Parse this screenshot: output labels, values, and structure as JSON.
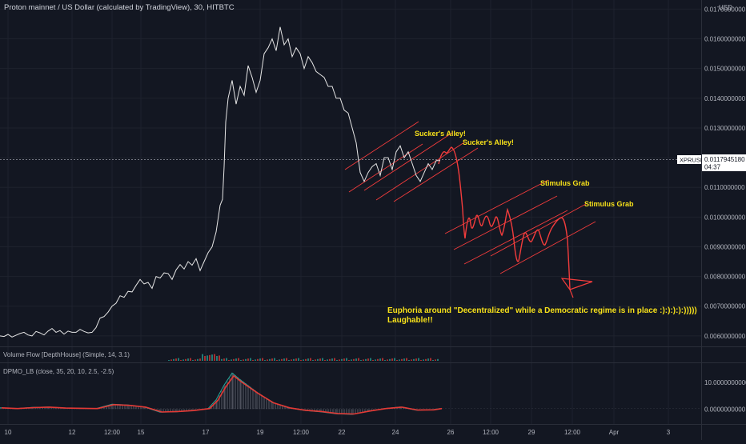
{
  "header": {
    "title": "Proton mainnet / US Dollar (calculated by TradingView), 30, HITBTC",
    "currency": "USD"
  },
  "price_badge": {
    "symbol": "XPRUSD",
    "price": "0.0117945180",
    "countdown": "04:37"
  },
  "annotations": {
    "suckers_alley_1": "Sucker's Alley!",
    "suckers_alley_2": "Sucker's Alley!",
    "stimulus_grab_1": "Stimulus Grab",
    "stimulus_grab_2": "Stimulus Grab",
    "comment_line1": "Euphoria around \"Decentralized\" while a Democratic regime is in place :):):):):)))))",
    "comment_line2": "Laughable!!"
  },
  "panels": {
    "volume_flow": "Volume Flow [DepthHouse] (Simple, 14, 3.1)",
    "dpmo": "DPMO_LB (close, 35, 20, 10, 2.5, -2.5)"
  },
  "colors": {
    "background": "#131722",
    "price_line": "#e6e6e6",
    "projection": "#f23c3c",
    "annotation_text": "#f7e11a",
    "dpmo_line": "#26a69a",
    "badge_bg": "#ffffff"
  },
  "chart_data": [
    {
      "type": "line",
      "title": "Proton mainnet / US Dollar (calculated by TradingView), 30, HITBTC",
      "x_ticks": [
        "10",
        "12",
        "12:00",
        "15",
        "17",
        "19",
        "12:00",
        "22",
        "24",
        "26",
        "12:00",
        "29",
        "12:00",
        "Apr",
        "3"
      ],
      "y_ticks": [
        "0.0060000000",
        "0.0070000000",
        "0.0080000000",
        "0.0090000000",
        "0.0100000000",
        "0.0110000000",
        "0.0120000000",
        "0.0130000000",
        "0.0140000000",
        "0.0150000000",
        "0.0160000000",
        "0.0170000000"
      ],
      "ylim": [
        0.0057,
        0.0172
      ],
      "series": [
        {
          "x": [
            0,
            5,
            10,
            15,
            20,
            25,
            30,
            35,
            40,
            45,
            50,
            55,
            60,
            65,
            70,
            75,
            80,
            85,
            90,
            95,
            100,
            105,
            110,
            115,
            120,
            125,
            130,
            135,
            140,
            145,
            150,
            155,
            160,
            165,
            170,
            175,
            180,
            185,
            190,
            195,
            200,
            205,
            210,
            215,
            220,
            225,
            230,
            235,
            240,
            245,
            250,
            255,
            260,
            265,
            270,
            275,
            278,
            280,
            282,
            285,
            290,
            295,
            300,
            305,
            310,
            315,
            320,
            325,
            330,
            335,
            340,
            345,
            350,
            355,
            360,
            365,
            370,
            375,
            380,
            385,
            390,
            395,
            400,
            405,
            410,
            415,
            420,
            425,
            430,
            435,
            440,
            445,
            450,
            455,
            460,
            465,
            470,
            475,
            480,
            485,
            490,
            495,
            500,
            505,
            510,
            515,
            520,
            525,
            530,
            535,
            540,
            545,
            550
          ],
          "values": [
            0.006,
            0.00598,
            0.00605,
            0.00596,
            0.00602,
            0.00608,
            0.00612,
            0.00603,
            0.006,
            0.00615,
            0.0061,
            0.00603,
            0.00616,
            0.00625,
            0.00612,
            0.00618,
            0.00606,
            0.00616,
            0.00612,
            0.00612,
            0.00622,
            0.00615,
            0.0061,
            0.00612,
            0.00628,
            0.0066,
            0.00665,
            0.0068,
            0.007,
            0.0071,
            0.00735,
            0.0073,
            0.0075,
            0.00748,
            0.0077,
            0.0079,
            0.00775,
            0.0078,
            0.0076,
            0.008,
            0.00795,
            0.00812,
            0.0081,
            0.0079,
            0.00822,
            0.0084,
            0.00825,
            0.0085,
            0.00838,
            0.0086,
            0.0082,
            0.0085,
            0.0088,
            0.009,
            0.0095,
            0.0104,
            0.0106,
            0.0117,
            0.0132,
            0.014,
            0.0146,
            0.0138,
            0.0144,
            0.0141,
            0.0151,
            0.0147,
            0.0142,
            0.0146,
            0.0155,
            0.0157,
            0.016,
            0.0156,
            0.0164,
            0.0158,
            0.016,
            0.0154,
            0.0157,
            0.0155,
            0.015,
            0.0154,
            0.0152,
            0.0149,
            0.0148,
            0.0147,
            0.0144,
            0.0144,
            0.014,
            0.014,
            0.0136,
            0.0135,
            0.013,
            0.0125,
            0.0115,
            0.0112,
            0.0115,
            0.0117,
            0.0118,
            0.0114,
            0.012,
            0.012,
            0.0116,
            0.0122,
            0.0124,
            0.012,
            0.0122,
            0.0118,
            0.0114,
            0.0112,
            0.0115,
            0.0118,
            0.0116,
            0.0119,
            0.0119
          ]
        }
      ]
    },
    {
      "type": "line",
      "title": "DPMO_LB (close, 35, 20, 10, 2.5, -2.5)",
      "y_ticks": [
        "0.0000000000",
        "10.0000000000"
      ],
      "ylim": [
        -5,
        16
      ],
      "series": [
        {
          "x": [
            0,
            20,
            40,
            60,
            80,
            100,
            120,
            140,
            160,
            180,
            200,
            220,
            240,
            260,
            270,
            280,
            290,
            300,
            320,
            340,
            360,
            380,
            400,
            420,
            440,
            460,
            480,
            500,
            520,
            540,
            550
          ],
          "values": [
            0.5,
            0.2,
            0.6,
            0.8,
            0.4,
            0.3,
            0.2,
            1.8,
            1.5,
            0.8,
            -1.2,
            -1.0,
            -0.6,
            0.2,
            3.5,
            9.0,
            13.5,
            11.0,
            6.5,
            2.5,
            0.5,
            -0.5,
            -1.0,
            -1.8,
            -2.0,
            -0.8,
            0.2,
            0.8,
            -0.4,
            -0.3,
            0.2
          ]
        }
      ]
    }
  ]
}
